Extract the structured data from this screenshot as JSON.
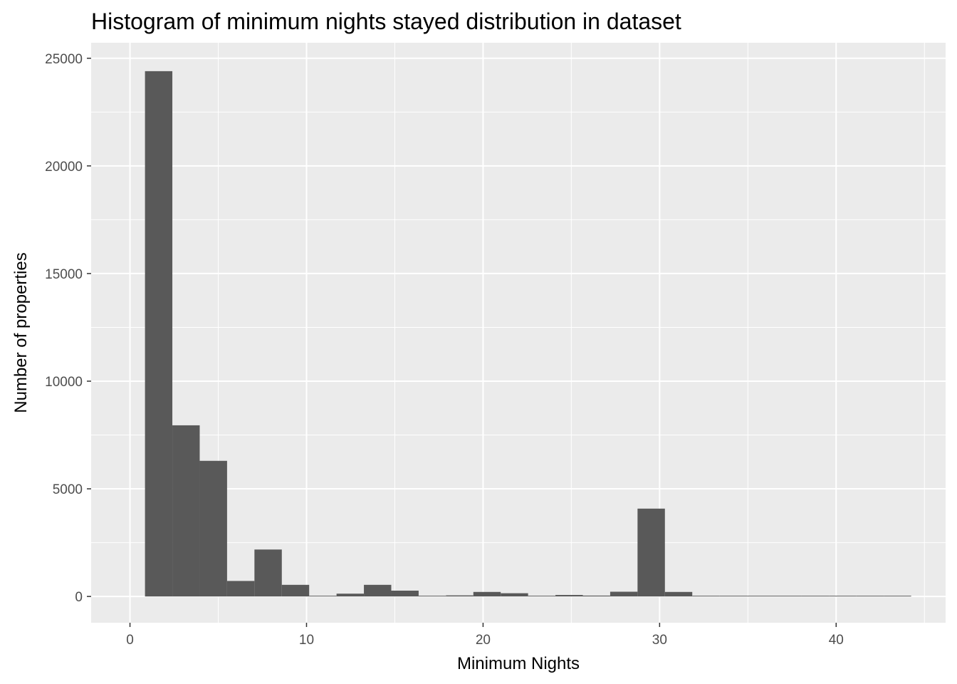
{
  "chart_data": {
    "type": "bar",
    "title": "Histogram of minimum nights stayed distribution in dataset",
    "xlabel": "Minimum Nights",
    "ylabel": "Number of properties",
    "xlim": [
      -2.2,
      46.2
    ],
    "ylim": [
      -1220,
      25720
    ],
    "x_ticks": [
      0,
      10,
      20,
      30,
      40
    ],
    "x_tick_labels": [
      "0",
      "10",
      "20",
      "30",
      "40"
    ],
    "y_ticks": [
      0,
      5000,
      10000,
      15000,
      20000,
      25000
    ],
    "y_tick_labels": [
      "0",
      "5000",
      "10000",
      "15000",
      "20000",
      "25000"
    ],
    "grid": true,
    "bar_color": "#595959",
    "panel_background": "#ebebeb",
    "grid_color": "#ffffff",
    "bin_width": 1.55,
    "bin_start": 0.85,
    "values": [
      24400,
      7950,
      6300,
      720,
      2180,
      540,
      20,
      130,
      540,
      270,
      30,
      50,
      210,
      150,
      30,
      70,
      40,
      220,
      4080,
      210,
      20,
      10,
      20,
      10,
      10,
      20,
      10,
      20
    ]
  }
}
